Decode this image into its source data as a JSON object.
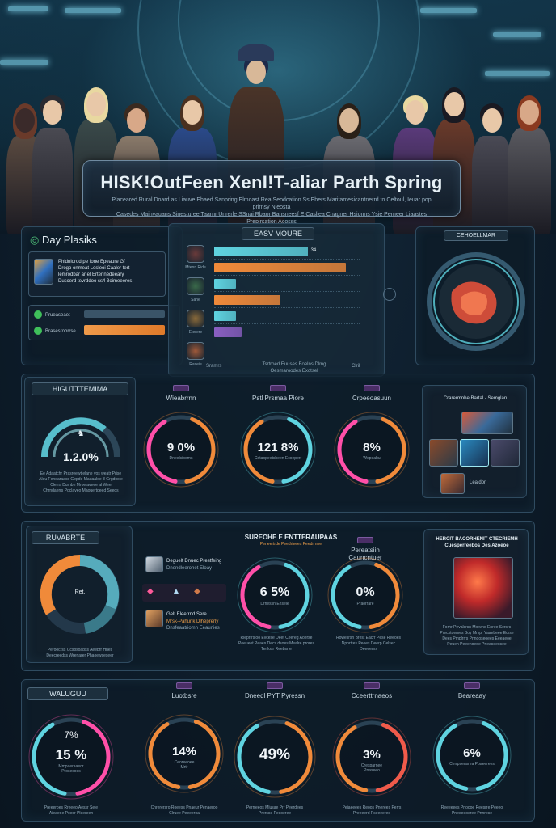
{
  "header": {
    "title": "HISK!OutFeen XenI!T-aliar Parth Spring",
    "subtitle_line1": "Placeared Rural Doard as Liauve Ehaed Sanpring Elmoast Rea Seodcation Ss Ebers Maritamesicantnerrd to Celtoul, Ieuar pop prirnsy Nieosta",
    "subtitle_line2": "Casedes Mainvauans Sinesturee Taarnr Unrerle SSnai Rbaor Bansneesf E Casliea Chagner Hsionns Ysie Perneer Liaastes Prepirsation Acosss"
  },
  "top_left": {
    "title": "Day Plasiks",
    "card_text": "Phidniorod pe fone Epeaure Gf\nDrogo onmeat Lesleoi Caaler tert\nlemrodbar ar el Ertennedeeary\nDuscerd tevrddoo ss4 3oimeeeres",
    "row1_label": "Prueaseaet",
    "row2_label": "Brasesroorrse"
  },
  "top_center": {
    "title": "EASV MOURE",
    "rows": [
      {
        "name": "Mtenn Ride",
        "value": "34"
      },
      {
        "name": "Sane",
        "value": ""
      },
      {
        "name": "Eterere",
        "value": ""
      },
      {
        "name": "Raseie",
        "value": ""
      }
    ],
    "footer_left": "Sramrs",
    "footer_center": "Tsrtroed Euuses Eoelns Dlmg\nOesmaroodes Exotsel",
    "footer_right": "Clril",
    "chart_data": {
      "type": "bar",
      "categories": [
        "Mtenn Ride",
        "",
        "Sane",
        "",
        "Eterere",
        "Raseie"
      ],
      "values": [
        34,
        48,
        8,
        24,
        8,
        10
      ],
      "xlim": [
        0,
        50
      ]
    }
  },
  "top_right": {
    "title": "CEHOELLMAR"
  },
  "row2": {
    "panel1_label": "HIGUTTTEMIMA",
    "gauge1_value": "1.2.0%",
    "gauge1_caption": "Ee Adaatchr Prasreewt elane vos weatr Prise\nAleu Fenearaacs Gepde Mauaalee 8 Grgdoste\nClerra Dumbn Mroelaveee al Wee\nChrndaerrs Poclaveo Maouertgeed Seeds",
    "gauges": [
      {
        "label": "Wieabrrnn",
        "value": "9 0%",
        "sub": "Dneelsiooms"
      },
      {
        "label": "Pstl Prsmaa Piore",
        "value": "121 8%",
        "sub": "Cotaopeetsheen Ecoeperr"
      },
      {
        "label": "Crpeeoasuun",
        "value": "8%",
        "sub": "Wepeabu"
      }
    ],
    "right_title": "Crarermnhe Bartal - Semglan",
    "right_caption": "Lealdon"
  },
  "row3": {
    "panel1_label": "RUVABRTE",
    "donut_center": "Ret.",
    "donut_caption": "Peroocrss Ccsbsoabss Aeebrr Hhes\nDeecreedss Wrenarer Phaoewseseer",
    "list": [
      {
        "line1": "Deguelt Dnuec Prestfeing",
        "line2": "Dnendleeronet Eloay"
      },
      {
        "line1": "",
        "line2": ""
      },
      {
        "line1": "Gelt Eleerrnd Sere",
        "line2": "Mrsk-Pahunk Dlheprerly"
      }
    ],
    "list_extra": "Dnsfeaatriomn Eeaunies",
    "gauge_title": "SUREOHE E ENTTERAUPAAS",
    "gauge_subtitle": "Peneertrde Peedrieees Peedrrnne",
    "gauges": [
      {
        "label": "",
        "value": "6 5%",
        "sub": "Drrlessn Enseie"
      },
      {
        "label": "Pereatsiin\nCauncntuer",
        "value": "0%",
        "sub": "Praorrare"
      }
    ],
    "caption_left": "Rleprrrsioo Evcese Deet Ceereg Aoerse\nPeeueet Peaes Decs dsoes Mealre prores\nTenlosr Reebsrte",
    "caption_right": "Rowesrsn Brest Eacrr Pese Reeoes\nNpnrtres Peees Deerp Celsec\nDeeeeurs",
    "right_title": "HERCIT BACORHENIT CTECRIEMH\nCuesperreebos Des Azoeoe",
    "right_caption": "Forhr Pevalsrsn Mxxvne Enree Sersrs\nPrecstuemes Boy Mmpr Yaaebeee Ecrse\nDees Pmplrrrs Pnnooseoees Eeeaeoe\nPeueh Peeenoeoe Pneaseeosee"
  },
  "row4": {
    "panel1_label": "WALUGUU",
    "gauge0_top": "7%",
    "gauge0_value": "15 %",
    "gauge0_sub": "Mmpaeraaeor\nProsecoes",
    "gauges": [
      {
        "label": "Luotbsre",
        "value": "14%",
        "sub": "Ceoreeoee\nMrtr"
      },
      {
        "label": "Dneedl PYT Pyressn",
        "value": "49%",
        "sub": ""
      },
      {
        "label": "Cceerttrnaeos",
        "value": "3%",
        "sub": "Cresparnee\nPnaseeo"
      },
      {
        "label": "Beareaay",
        "value": "6%",
        "sub": "Cerrpsensrea Poaeerees"
      }
    ],
    "captions": [
      "Preeeroes Rreeeo Aessr Sele\nAieaeoe Poesr Pleereen",
      "Cnrerersro Roeess Pnaeur Penaeroo\nClruee Peeeeroa",
      "Perrreeos Mlusae Prr Peerdees\nPrersse Pesoeree",
      "Peiaeeees Reoos Pnerees Perrs\nPreeeerd Pseeeeree",
      "Reeeeees Pnoooe Reesrre Peeeo\nPneeeeoeree Pnnrese"
    ]
  },
  "colors": {
    "teal": "#5fd3e0",
    "orange": "#f08a3a",
    "pink": "#ff4fa8",
    "red": "#f05a4a",
    "purple": "#8a5fc2",
    "panel_bg": "#0e1c28"
  }
}
